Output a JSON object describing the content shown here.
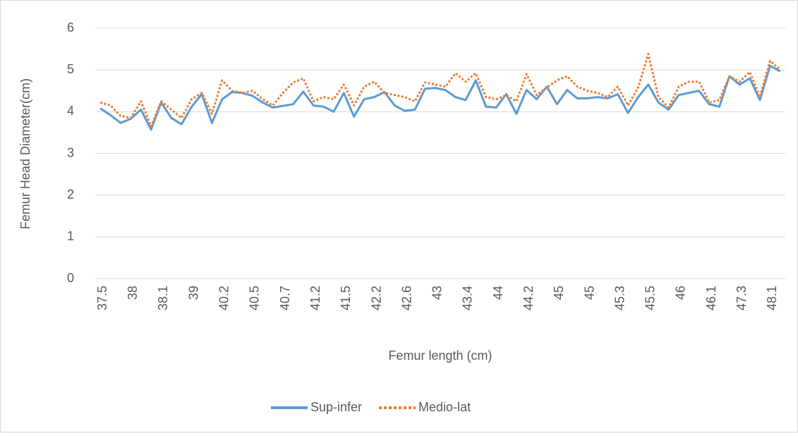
{
  "chart_data": {
    "type": "line",
    "y_label": "Femur Head Diameter(cm)",
    "x_label": "Femur length (cm)",
    "categories": [
      "37.5",
      null,
      null,
      "38",
      null,
      null,
      "38.1",
      null,
      null,
      "39",
      null,
      null,
      "40.2",
      null,
      null,
      "40.5",
      null,
      null,
      "40.7",
      null,
      null,
      "41.2",
      null,
      null,
      "41.5",
      null,
      null,
      "42.2",
      null,
      null,
      "42.6",
      null,
      null,
      "43",
      null,
      null,
      "43.4",
      null,
      null,
      "44",
      null,
      null,
      "44.2",
      null,
      null,
      "45",
      null,
      null,
      "45",
      null,
      null,
      "45.3",
      null,
      null,
      "45.5",
      null,
      null,
      "46",
      null,
      null,
      "46.1",
      null,
      null,
      "47.3",
      null,
      null,
      "48.1",
      null
    ],
    "series": [
      {
        "name": "Sup-infer",
        "color": "#5b9bd5",
        "dashed": false,
        "values": [
          4.08,
          3.92,
          3.73,
          3.83,
          4.05,
          3.57,
          4.22,
          3.85,
          3.7,
          4.12,
          4.42,
          3.73,
          4.3,
          4.47,
          4.45,
          4.38,
          4.22,
          4.1,
          4.14,
          4.18,
          4.48,
          4.15,
          4.12,
          4.0,
          4.45,
          3.88,
          4.3,
          4.35,
          4.47,
          4.15,
          4.02,
          4.05,
          4.55,
          4.57,
          4.52,
          4.35,
          4.28,
          4.75,
          4.12,
          4.1,
          4.42,
          3.95,
          4.52,
          4.3,
          4.6,
          4.18,
          4.52,
          4.32,
          4.32,
          4.35,
          4.32,
          4.42,
          3.97,
          4.35,
          4.65,
          4.22,
          4.05,
          4.4,
          4.45,
          4.5,
          4.18,
          4.12,
          4.85,
          4.65,
          4.8,
          4.28,
          5.1,
          4.97
        ]
      },
      {
        "name": "Medio-lat",
        "color": "#ed7d31",
        "dashed": true,
        "values": [
          4.22,
          4.15,
          3.9,
          3.85,
          4.25,
          3.65,
          4.25,
          4.05,
          3.85,
          4.3,
          4.45,
          3.95,
          4.75,
          4.5,
          4.45,
          4.5,
          4.3,
          4.15,
          4.45,
          4.7,
          4.8,
          4.25,
          4.35,
          4.3,
          4.65,
          4.15,
          4.6,
          4.72,
          4.45,
          4.4,
          4.35,
          4.25,
          4.7,
          4.65,
          4.6,
          4.92,
          4.72,
          4.92,
          4.35,
          4.3,
          4.4,
          4.25,
          4.9,
          4.4,
          4.58,
          4.75,
          4.85,
          4.6,
          4.5,
          4.45,
          4.35,
          4.6,
          4.15,
          4.58,
          5.38,
          4.35,
          4.1,
          4.6,
          4.72,
          4.72,
          4.22,
          4.28,
          4.85,
          4.72,
          4.95,
          4.35,
          5.22,
          5.0
        ]
      }
    ],
    "ylim": [
      0,
      6
    ],
    "yticks": [
      0,
      1,
      2,
      3,
      4,
      5,
      6
    ],
    "grid": true,
    "legend": "bottom"
  }
}
